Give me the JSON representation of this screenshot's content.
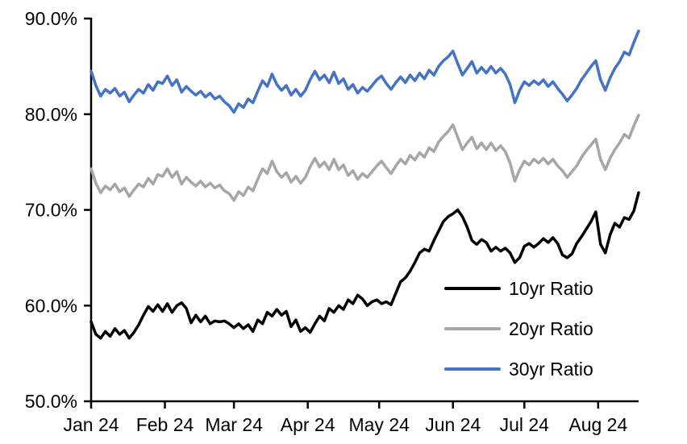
{
  "chart_data": {
    "type": "line",
    "title": "",
    "xlabel": "",
    "ylabel": "",
    "ylim": [
      50,
      90
    ],
    "y_tick_values": [
      90,
      80,
      70,
      60,
      50
    ],
    "y_tick_labels": [
      "90.0%",
      "80.0%",
      "70.0%",
      "60.0%",
      "50.0%"
    ],
    "grid": false,
    "legend_position": "inside-bottom-right",
    "background": "#FFFFFF",
    "axis_color": "#000000",
    "x_total_days": 230,
    "x_step_days": 2,
    "x_ticks": [
      {
        "label": "Jan 24",
        "day": 0
      },
      {
        "label": "Feb 24",
        "day": 31
      },
      {
        "label": "Mar 24",
        "day": 60
      },
      {
        "label": "Apr 24",
        "day": 91
      },
      {
        "label": "May 24",
        "day": 121
      },
      {
        "label": "Jun 24",
        "day": 152
      },
      {
        "label": "Jul 24",
        "day": 182
      },
      {
        "label": "Aug 24",
        "day": 213
      }
    ],
    "series": [
      {
        "name": "10yr Ratio",
        "color": "#000000",
        "values": [
          58.3,
          57.0,
          56.6,
          57.3,
          56.8,
          57.6,
          57.0,
          57.4,
          56.6,
          57.2,
          58.0,
          59.0,
          59.9,
          59.4,
          60.1,
          59.4,
          60.2,
          59.3,
          60.0,
          60.3,
          59.7,
          58.2,
          59.0,
          58.3,
          58.9,
          58.1,
          58.4,
          58.3,
          58.4,
          58.1,
          57.7,
          58.1,
          57.6,
          58.0,
          57.3,
          58.5,
          58.1,
          59.3,
          58.9,
          59.6,
          59.0,
          59.4,
          57.8,
          58.5,
          57.3,
          57.7,
          57.2,
          58.1,
          58.9,
          58.4,
          59.7,
          59.3,
          60.0,
          59.6,
          60.6,
          60.2,
          61.1,
          60.7,
          60.0,
          60.4,
          60.6,
          60.2,
          60.4,
          60.1,
          61.3,
          62.5,
          62.9,
          63.6,
          64.5,
          65.5,
          65.9,
          65.7,
          66.8,
          67.8,
          68.8,
          69.3,
          69.6,
          70.0,
          69.3,
          68.2,
          66.8,
          66.4,
          66.9,
          66.6,
          65.7,
          66.1,
          65.7,
          66.0,
          65.5,
          64.5,
          65.0,
          66.2,
          66.5,
          66.1,
          66.5,
          67.0,
          66.6,
          67.1,
          66.5,
          65.3,
          65.0,
          65.4,
          66.5,
          67.2,
          68.0,
          68.8,
          69.8,
          66.4,
          65.5,
          67.4,
          68.6,
          68.2,
          69.2,
          69.0,
          69.9,
          71.8
        ]
      },
      {
        "name": "20yr Ratio",
        "color": "#A6A6A6",
        "values": [
          74.3,
          72.8,
          71.8,
          72.5,
          72.1,
          72.7,
          71.9,
          72.3,
          71.4,
          72.1,
          72.7,
          72.4,
          73.3,
          72.7,
          73.7,
          73.5,
          74.3,
          73.4,
          74.0,
          72.7,
          73.4,
          72.9,
          72.5,
          73.0,
          72.4,
          72.8,
          72.3,
          72.6,
          72.0,
          71.7,
          71.0,
          71.9,
          71.5,
          72.4,
          72.0,
          73.2,
          74.3,
          73.8,
          75.1,
          74.0,
          73.4,
          73.9,
          72.9,
          73.5,
          72.8,
          73.4,
          74.5,
          75.4,
          74.5,
          75.0,
          74.2,
          75.3,
          74.2,
          74.7,
          73.6,
          74.1,
          73.2,
          73.8,
          73.4,
          74.0,
          74.6,
          75.1,
          74.4,
          73.8,
          74.6,
          75.3,
          74.8,
          75.7,
          75.2,
          76.0,
          75.5,
          76.5,
          76.1,
          77.1,
          77.7,
          78.2,
          78.9,
          77.6,
          76.3,
          77.0,
          77.6,
          76.4,
          77.0,
          76.3,
          77.0,
          76.2,
          76.7,
          76.1,
          74.9,
          73.0,
          74.2,
          75.1,
          74.7,
          75.3,
          74.9,
          75.4,
          74.8,
          75.3,
          74.6,
          74.1,
          73.4,
          74.0,
          74.6,
          75.5,
          76.2,
          76.8,
          77.4,
          75.3,
          74.2,
          75.4,
          76.3,
          77.0,
          77.9,
          77.5,
          78.8,
          79.9
        ]
      },
      {
        "name": "30yr Ratio",
        "color": "#4472C4",
        "values": [
          84.5,
          83.0,
          81.9,
          82.6,
          82.2,
          82.7,
          81.9,
          82.3,
          81.3,
          82.0,
          82.6,
          82.2,
          83.1,
          82.5,
          83.4,
          83.2,
          84.0,
          83.0,
          83.6,
          82.3,
          82.9,
          82.4,
          82.0,
          82.4,
          81.8,
          82.2,
          81.6,
          81.9,
          81.3,
          80.9,
          80.2,
          81.1,
          80.7,
          81.6,
          81.2,
          82.4,
          83.5,
          82.9,
          84.2,
          83.1,
          82.5,
          83.0,
          82.0,
          82.6,
          81.9,
          82.5,
          83.6,
          84.5,
          83.6,
          84.1,
          83.3,
          84.4,
          83.2,
          83.7,
          82.6,
          83.1,
          82.2,
          82.8,
          82.4,
          83.0,
          83.6,
          84.0,
          83.2,
          82.6,
          83.3,
          83.9,
          83.3,
          84.1,
          83.5,
          84.3,
          83.7,
          84.6,
          84.1,
          85.0,
          85.6,
          86.0,
          86.6,
          85.3,
          84.1,
          84.8,
          85.5,
          84.3,
          84.9,
          84.3,
          85.0,
          84.3,
          84.8,
          84.2,
          83.1,
          81.2,
          82.5,
          83.4,
          83.0,
          83.5,
          83.1,
          83.6,
          82.9,
          83.4,
          82.7,
          82.1,
          81.4,
          82.0,
          82.7,
          83.6,
          84.3,
          85.0,
          85.6,
          83.6,
          82.5,
          83.8,
          84.8,
          85.5,
          86.5,
          86.2,
          87.5,
          88.7
        ]
      }
    ]
  }
}
